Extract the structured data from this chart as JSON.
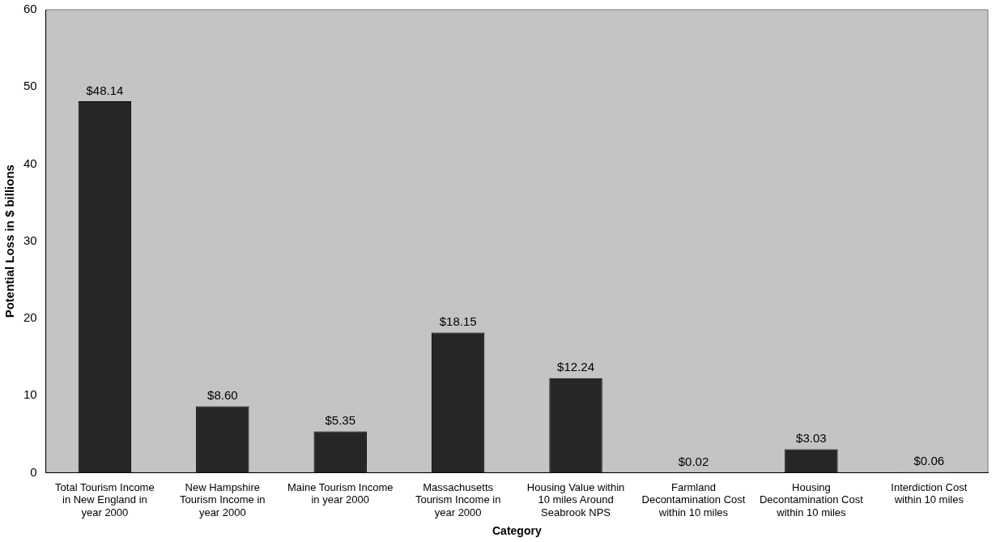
{
  "chart_data": {
    "type": "bar",
    "xlabel": "Category",
    "ylabel": "Potential Loss in $ billions",
    "categories": [
      "Total Tourism Income in New England in year 2000",
      "New Hampshire Tourism Income in year 2000",
      "Maine Tourism Income in year 2000",
      "Massachusetts Tourism Income in year 2000",
      "Housing Value within 10 miles Around Seabrook NPS",
      "Farmland Decontamination Cost within 10 miles",
      "Housing Decontamination Cost within 10 miles",
      "Interdiction Cost within 10 miles"
    ],
    "values": [
      48.14,
      8.6,
      5.35,
      18.15,
      12.24,
      0.02,
      3.03,
      0.06
    ],
    "value_labels": [
      "$48.14",
      "$8.60",
      "$5.35",
      "$18.15",
      "$12.24",
      "$0.02",
      "$3.03",
      "$0.06"
    ],
    "color": "#262626",
    "ylim": [
      0,
      60
    ],
    "yticks": [
      0,
      10,
      20,
      30,
      40,
      50,
      60
    ]
  }
}
